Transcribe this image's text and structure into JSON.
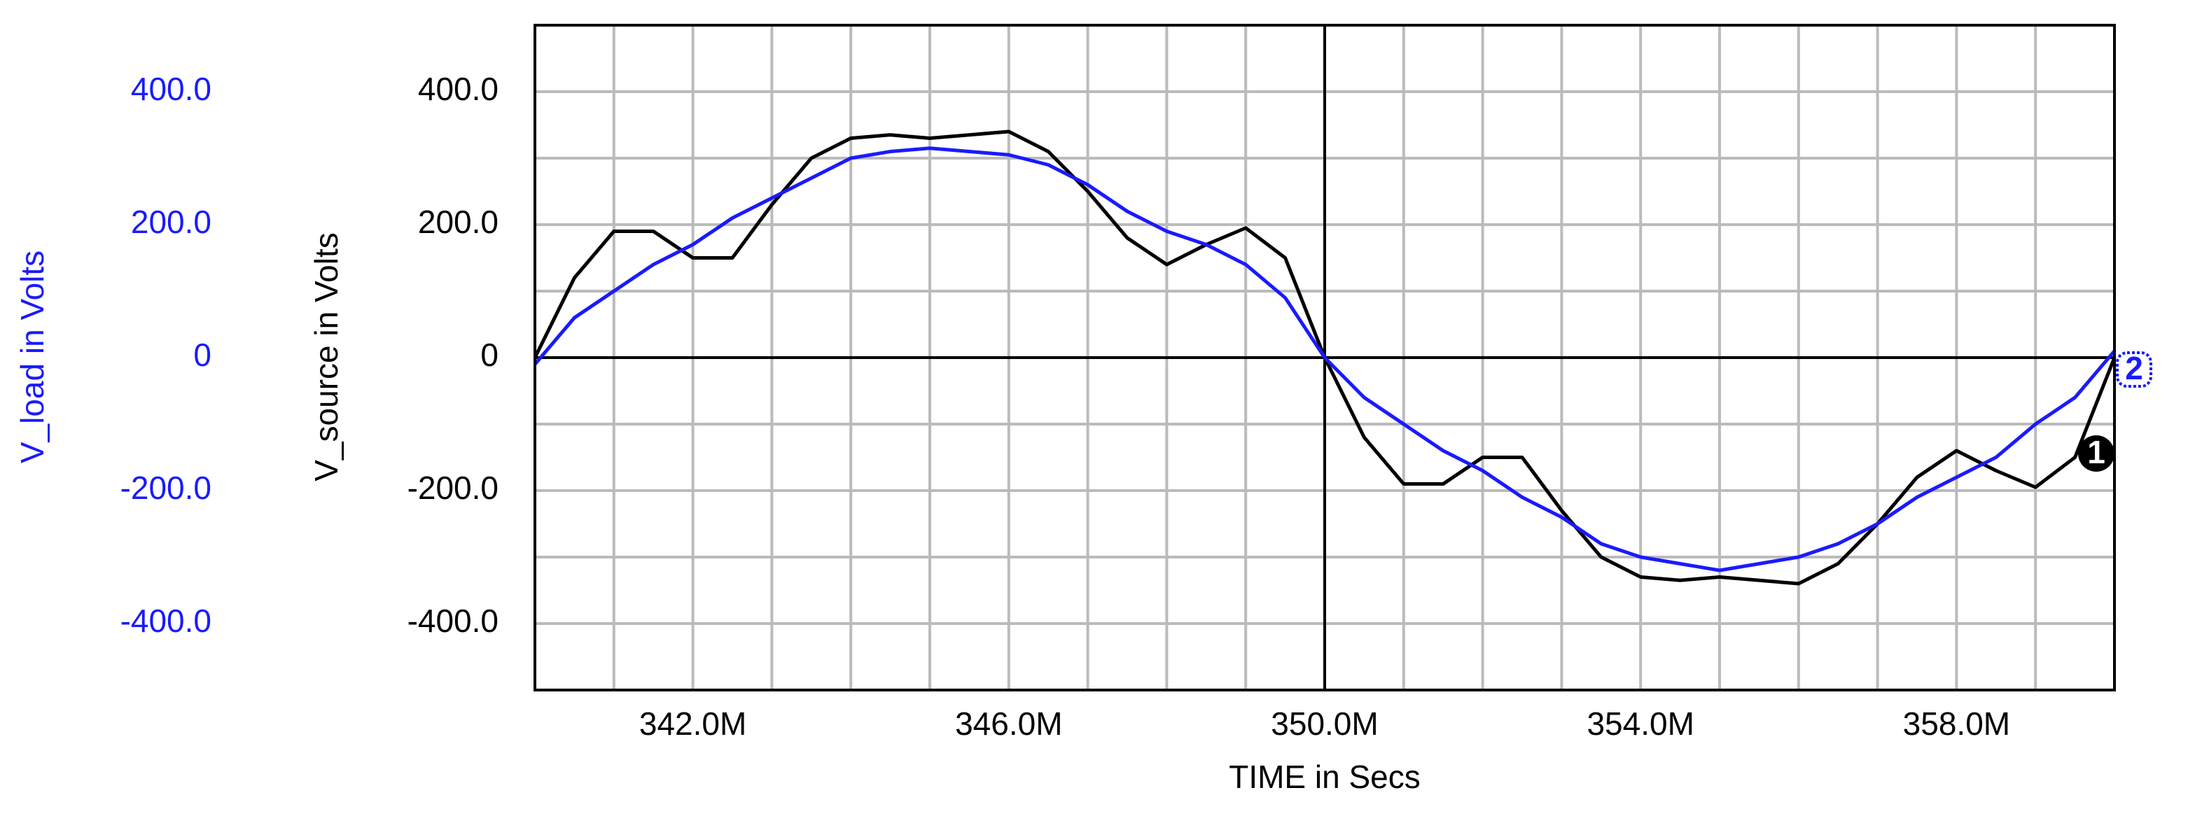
{
  "chart_data": {
    "type": "line",
    "xlabel": "TIME in Secs",
    "ylabel": "V_source in Volts",
    "y2label": "V_load in Volts",
    "x": [
      340,
      340.5,
      341,
      341.5,
      342,
      342.5,
      343,
      343.5,
      344,
      344.5,
      345,
      345.5,
      346,
      346.5,
      347,
      347.5,
      348,
      348.5,
      349,
      349.5,
      350,
      350.5,
      351,
      351.5,
      352,
      352.5,
      353,
      353.5,
      354,
      354.5,
      355,
      355.5,
      356,
      356.5,
      357,
      357.5,
      358,
      358.5,
      359,
      359.5,
      360
    ],
    "series": [
      {
        "label": "1",
        "color": "#000000",
        "values": [
          0,
          120,
          190,
          190,
          150,
          150,
          230,
          300,
          330,
          335,
          330,
          335,
          340,
          310,
          250,
          180,
          140,
          170,
          195,
          150,
          0,
          -120,
          -190,
          -190,
          -150,
          -150,
          -230,
          -300,
          -330,
          -335,
          -330,
          -335,
          -340,
          -310,
          -250,
          -180,
          -140,
          -170,
          -195,
          -150,
          0
        ]
      },
      {
        "label": "2",
        "color": "#1a1aff",
        "axis": "y2",
        "values": [
          -10,
          60,
          100,
          140,
          170,
          210,
          240,
          270,
          300,
          310,
          315,
          310,
          305,
          290,
          260,
          220,
          190,
          170,
          140,
          90,
          0,
          -60,
          -100,
          -140,
          -170,
          -210,
          -240,
          -280,
          -300,
          -310,
          -320,
          -310,
          -300,
          -280,
          -250,
          -210,
          -180,
          -150,
          -100,
          -60,
          10
        ]
      }
    ],
    "xlim": [
      340,
      360
    ],
    "xticks": [
      {
        "value": 342,
        "label": "342.0M"
      },
      {
        "value": 346,
        "label": "346.0M"
      },
      {
        "value": 350,
        "label": "350.0M"
      },
      {
        "value": 354,
        "label": "354.0M"
      },
      {
        "value": 358,
        "label": "358.0M"
      }
    ],
    "xgrid": [
      341,
      343,
      344,
      345,
      347,
      348,
      349,
      351,
      352,
      353,
      355,
      356,
      357,
      359
    ],
    "ylim": [
      -500,
      500
    ],
    "yticks": [
      {
        "value": 400,
        "label": "400.0"
      },
      {
        "value": 200,
        "label": "200.0"
      },
      0,
      {
        "value": -200,
        "label": "-200.0"
      },
      {
        "value": -400,
        "label": "-400.0"
      }
    ],
    "ygrid": [
      300,
      100,
      -100,
      -300
    ],
    "y2lim": [
      -500,
      500
    ],
    "y2ticks": [
      {
        "value": 400,
        "label": "400.0"
      },
      {
        "value": 200,
        "label": "200.0"
      },
      0,
      {
        "value": -200,
        "label": "-200.0"
      },
      {
        "value": -400,
        "label": "-400.0"
      }
    ],
    "cursor_x": 350,
    "grid": true
  }
}
